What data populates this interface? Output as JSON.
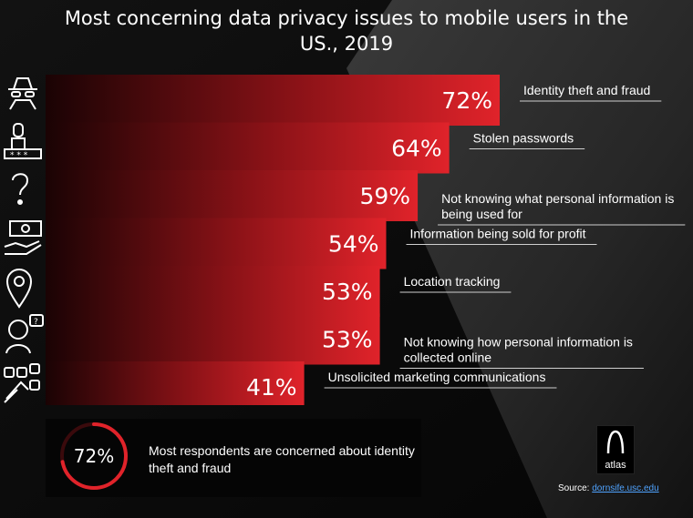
{
  "title": "Most concerning data privacy issues to mobile users in the US., 2019",
  "chart_data": {
    "type": "bar",
    "orientation": "horizontal",
    "title": "Most concerning data privacy issues to mobile users in the US., 2019",
    "categories": [
      "Identity theft and fraud",
      "Stolen passwords",
      "Not knowing what personal information is being used for",
      "Information being sold for profit",
      "Location tracking",
      "Not knowing how personal information is collected online",
      "Unsolicited marketing communications"
    ],
    "category_lines": [
      [
        "Identity theft and fraud"
      ],
      [
        "Stolen passwords"
      ],
      [
        "Not knowing what personal information is",
        "being used for"
      ],
      [
        "Information being sold for profit"
      ],
      [
        "Location tracking"
      ],
      [
        "Not knowing how personal information is",
        "collected online"
      ],
      [
        "Unsolicited marketing communications"
      ]
    ],
    "values": [
      72,
      64,
      59,
      54,
      53,
      53,
      41
    ],
    "value_labels": [
      "72%",
      "64%",
      "59%",
      "54%",
      "53%",
      "53%",
      "41%"
    ],
    "xlim": [
      0,
      72
    ],
    "unit": "%",
    "bar_color": "#e0232a"
  },
  "icons": [
    "spy-icon",
    "password-icon",
    "question-icon",
    "money-hand-icon",
    "location-pin-icon",
    "confused-person-icon",
    "marketing-icon"
  ],
  "summary": {
    "value": "72%",
    "value_fraction": 0.72,
    "text": "Most respondents are concerned about identity theft and fraud"
  },
  "logo": {
    "text": "atlas"
  },
  "source": {
    "label": "Source:",
    "link": "dornsife.usc.edu"
  }
}
